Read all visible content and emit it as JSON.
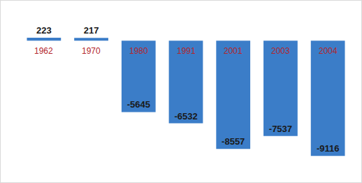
{
  "chart_data": {
    "type": "bar",
    "categories": [
      "1962",
      "1970",
      "1980",
      "1991",
      "2001",
      "2003",
      "2004"
    ],
    "values": [
      223,
      217,
      -5645,
      -6532,
      -8557,
      -7537,
      -9116
    ],
    "color": "#3b7dc8",
    "ylim": [
      -10200,
      2600
    ],
    "grid": false,
    "data_labels": true,
    "tick_labels": "x"
  }
}
